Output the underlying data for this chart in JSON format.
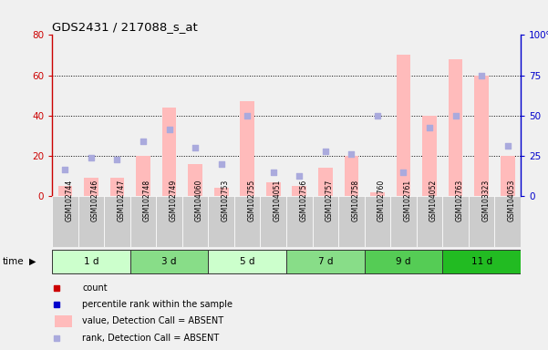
{
  "title": "GDS2431 / 217088_s_at",
  "samples": [
    "GSM102744",
    "GSM102746",
    "GSM102747",
    "GSM102748",
    "GSM102749",
    "GSM104060",
    "GSM102753",
    "GSM102755",
    "GSM104051",
    "GSM102756",
    "GSM102757",
    "GSM102758",
    "GSM102760",
    "GSM102761",
    "GSM104052",
    "GSM102763",
    "GSM103323",
    "GSM104053"
  ],
  "groups": [
    {
      "label": "1 d",
      "indices": [
        0,
        1,
        2
      ],
      "color": "#ccffcc"
    },
    {
      "label": "3 d",
      "indices": [
        3,
        4,
        5
      ],
      "color": "#88dd88"
    },
    {
      "label": "5 d",
      "indices": [
        6,
        7,
        8
      ],
      "color": "#ccffcc"
    },
    {
      "label": "7 d",
      "indices": [
        9,
        10,
        11
      ],
      "color": "#88dd88"
    },
    {
      "label": "9 d",
      "indices": [
        12,
        13,
        14
      ],
      "color": "#55cc55"
    },
    {
      "label": "11 d",
      "indices": [
        15,
        16,
        17
      ],
      "color": "#22bb22"
    }
  ],
  "bar_values": [
    5,
    9,
    9,
    20,
    44,
    16,
    4,
    47,
    7,
    5,
    14,
    20,
    2,
    70,
    40,
    68,
    60,
    20
  ],
  "dot_values": [
    13,
    19,
    18,
    27,
    33,
    24,
    16,
    40,
    12,
    10,
    22,
    21,
    40,
    12,
    34,
    40,
    60,
    25
  ],
  "ylim_left": [
    0,
    80
  ],
  "ylim_right": [
    0,
    100
  ],
  "yticks_left": [
    0,
    20,
    40,
    60,
    80
  ],
  "yticks_right": [
    0,
    25,
    50,
    75,
    100
  ],
  "bar_color_absent": "#ffbbbb",
  "dot_color_present": "#cc0000",
  "dot_color_absent": "#aaaadd",
  "left_axis_color": "#cc0000",
  "right_axis_color": "#0000cc",
  "sample_bg": "#cccccc",
  "fig_bg": "#f0f0f0"
}
